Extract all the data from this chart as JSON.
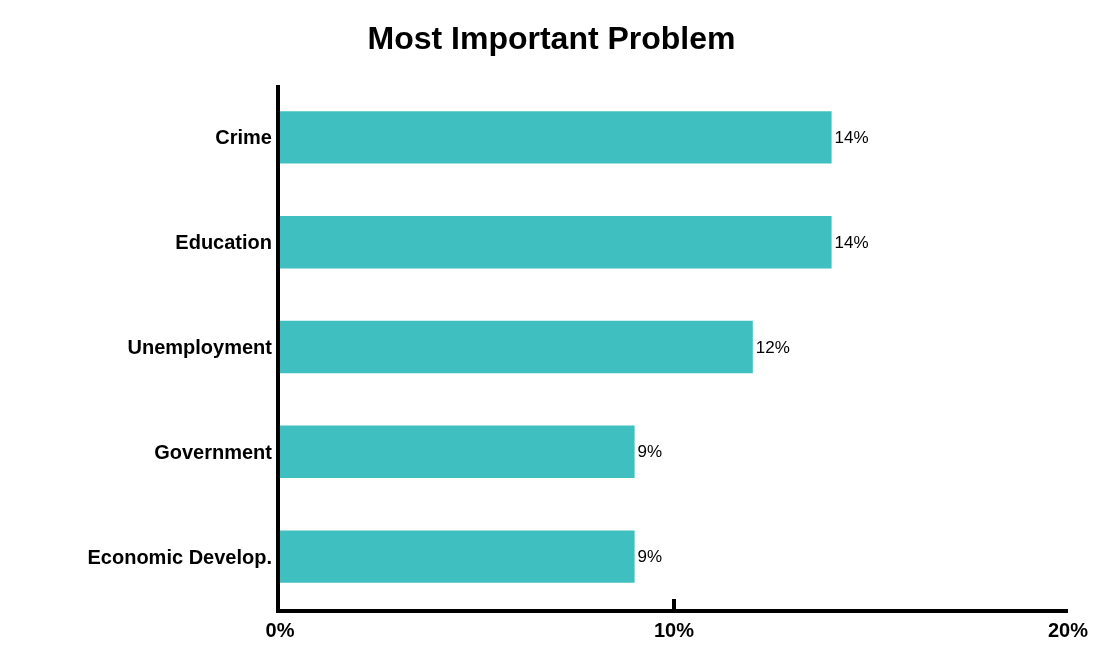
{
  "chart_data": {
    "type": "bar",
    "orientation": "horizontal",
    "title": "Most Important Problem",
    "categories": [
      "Crime",
      "Education",
      "Unemployment",
      "Government",
      "Economic Develop."
    ],
    "values": [
      14,
      14,
      12,
      9,
      9
    ],
    "value_labels": [
      "14%",
      "14%",
      "12%",
      "9%",
      "9%"
    ],
    "color": "#40bfc1",
    "xlim": [
      0,
      20
    ],
    "xticks": [
      {
        "value": 0,
        "label": "0%"
      },
      {
        "value": 10,
        "label": "10%"
      },
      {
        "value": 20,
        "label": "20%"
      }
    ]
  }
}
